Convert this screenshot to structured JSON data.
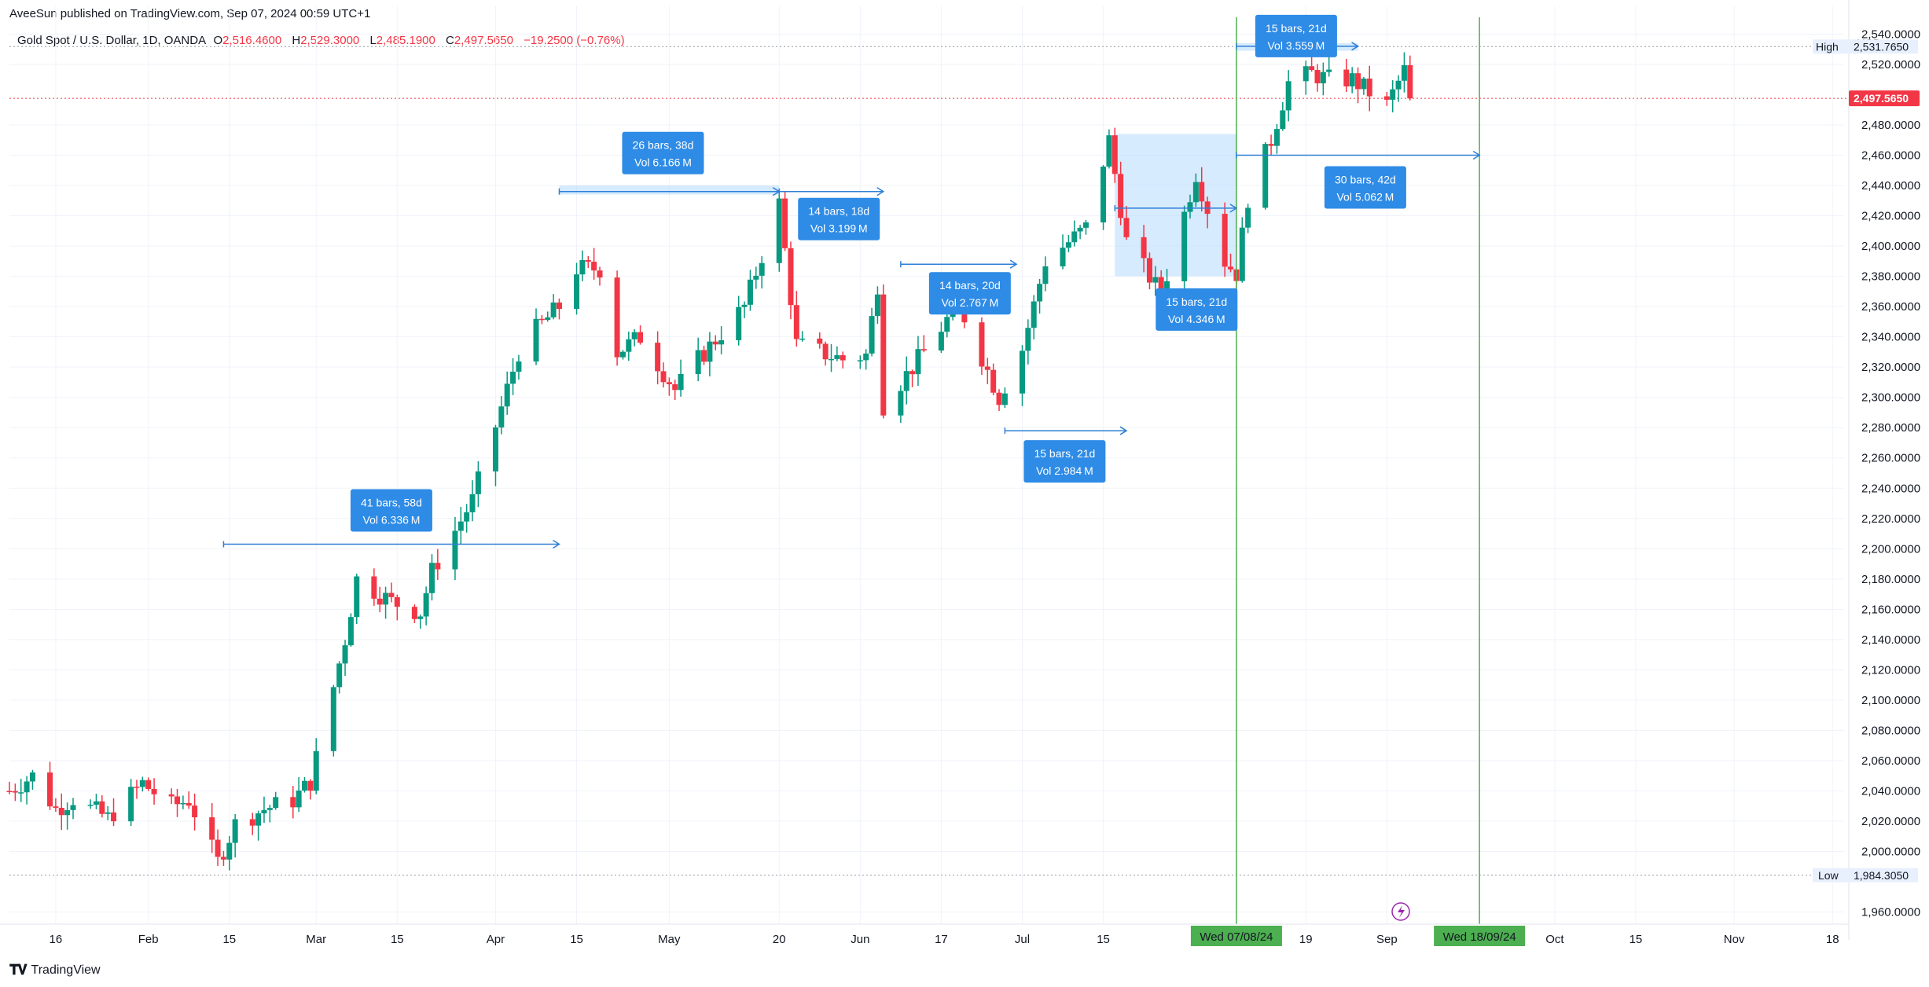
{
  "publisher": "AveeSun published on TradingView.com, Sep 07, 2024 00:59 UTC+1",
  "legend": {
    "symbol": "Gold Spot / U.S. Dollar, 1D, OANDA",
    "open_label": "O",
    "open": "2,516.4600",
    "high_label": "H",
    "high": "2,529.3000",
    "low_label": "L",
    "low": "2,485.1900",
    "close_label": "C",
    "close": "2,497.5650",
    "change": "−19.2500 (−0.76%)"
  },
  "footer": {
    "brand": "TradingView"
  },
  "chart_data": {
    "type": "candlestick",
    "currency": "USD",
    "y_ticks": [
      "1,960.0000",
      "2,000.0000",
      "2,020.0000",
      "2,040.0000",
      "2,060.0000",
      "2,080.0000",
      "2,100.0000",
      "2,120.0000",
      "2,140.0000",
      "2,160.0000",
      "2,180.0000",
      "2,200.0000",
      "2,220.0000",
      "2,240.0000",
      "2,260.0000",
      "2,280.0000",
      "2,300.0000",
      "2,320.0000",
      "2,340.0000",
      "2,360.0000",
      "2,380.0000",
      "2,400.0000",
      "2,420.0000",
      "2,440.0000",
      "2,460.0000",
      "2,480.0000",
      "2,520.0000",
      "2,540.0000"
    ],
    "ylim": [
      1952,
      2548
    ],
    "price_tags": {
      "high_label": "High",
      "high": "2,531.7650",
      "low_label": "Low",
      "low": "1,984.3050",
      "last": "2,497.5650"
    },
    "x_labels": [
      {
        "label": "16",
        "date": "2024-01-16"
      },
      {
        "label": "Feb",
        "date": "2024-02-01"
      },
      {
        "label": "15",
        "date": "2024-02-15"
      },
      {
        "label": "Mar",
        "date": "2024-03-01"
      },
      {
        "label": "15",
        "date": "2024-03-15"
      },
      {
        "label": "Apr",
        "date": "2024-04-01"
      },
      {
        "label": "15",
        "date": "2024-04-15"
      },
      {
        "label": "May",
        "date": "2024-05-01"
      },
      {
        "label": "20",
        "date": "2024-05-20"
      },
      {
        "label": "Jun",
        "date": "2024-06-03"
      },
      {
        "label": "17",
        "date": "2024-06-17"
      },
      {
        "label": "Jul",
        "date": "2024-07-01"
      },
      {
        "label": "15",
        "date": "2024-07-15"
      },
      {
        "label": "19",
        "date": "2024-08-19"
      },
      {
        "label": "Sep",
        "date": "2024-09-02"
      },
      {
        "label": "Oct",
        "date": "2024-10-01"
      },
      {
        "label": "15",
        "date": "2024-10-15"
      },
      {
        "label": "Nov",
        "date": "2024-11-01"
      },
      {
        "label": "18",
        "date": "2024-11-18"
      }
    ],
    "x_range": [
      "2024-01-08",
      "2024-11-20"
    ],
    "date_markers": [
      {
        "label": "Wed 07/08/24",
        "date": "2024-08-07"
      },
      {
        "label": "Wed 18/09/24",
        "date": "2024-09-18"
      }
    ],
    "waypoints": [
      [
        "2024-01-08",
        2040
      ],
      [
        "2024-01-12",
        2050
      ],
      [
        "2024-01-16",
        2028
      ],
      [
        "2024-01-19",
        2035
      ],
      [
        "2024-01-25",
        2022
      ],
      [
        "2024-01-31",
        2045
      ],
      [
        "2024-02-05",
        2030
      ],
      [
        "2024-02-08",
        2034
      ],
      [
        "2024-02-13",
        1993
      ],
      [
        "2024-02-16",
        2018
      ],
      [
        "2024-02-21",
        2028
      ],
      [
        "2024-02-26",
        2034
      ],
      [
        "2024-02-29",
        2046
      ],
      [
        "2024-03-06",
        2140
      ],
      [
        "2024-03-08",
        2180
      ],
      [
        "2024-03-14",
        2165
      ],
      [
        "2024-03-19",
        2158
      ],
      [
        "2024-03-21",
        2185
      ],
      [
        "2024-03-28",
        2232
      ],
      [
        "2024-04-05",
        2330
      ],
      [
        "2024-04-08",
        2345
      ],
      [
        "2024-04-12",
        2360
      ],
      [
        "2024-04-15",
        2385
      ],
      [
        "2024-04-19",
        2385
      ],
      [
        "2024-04-22",
        2330
      ],
      [
        "2024-04-26",
        2340
      ],
      [
        "2024-05-02",
        2305
      ],
      [
        "2024-05-06",
        2325
      ],
      [
        "2024-05-14",
        2360
      ],
      [
        "2024-05-20",
        2428
      ],
      [
        "2024-05-23",
        2335
      ],
      [
        "2024-05-31",
        2325
      ],
      [
        "2024-06-04",
        2328
      ],
      [
        "2024-06-06",
        2375
      ],
      [
        "2024-06-07",
        2295
      ],
      [
        "2024-06-14",
        2330
      ],
      [
        "2024-06-20",
        2362
      ],
      [
        "2024-06-27",
        2300
      ],
      [
        "2024-07-01",
        2332
      ],
      [
        "2024-07-05",
        2390
      ],
      [
        "2024-07-12",
        2412
      ],
      [
        "2024-07-16",
        2470
      ],
      [
        "2024-07-19",
        2403
      ],
      [
        "2024-07-25",
        2368
      ],
      [
        "2024-07-31",
        2448
      ],
      [
        "2024-08-05",
        2390
      ],
      [
        "2024-08-07",
        2382
      ],
      [
        "2024-08-09",
        2432
      ],
      [
        "2024-08-13",
        2470
      ],
      [
        "2024-08-16",
        2508
      ],
      [
        "2024-08-20",
        2514
      ],
      [
        "2024-08-23",
        2510
      ],
      [
        "2024-08-27",
        2510
      ],
      [
        "2024-09-02",
        2493
      ],
      [
        "2024-09-05",
        2516
      ],
      [
        "2024-09-06",
        2497.565
      ]
    ],
    "annotations": [
      {
        "line1": "41 bars, 58d",
        "line2": "Vol 6.336 M",
        "start": "2024-02-14",
        "end": "2024-04-12",
        "price": 2203
      },
      {
        "line1": "26 bars, 38d",
        "line2": "Vol 6.166 M",
        "start": "2024-04-12",
        "end": "2024-05-20",
        "price": 2436
      },
      {
        "line1": "14 bars, 18d",
        "line2": "Vol 3.199 M",
        "start": "2024-05-20",
        "end": "2024-06-07",
        "price": 2436
      },
      {
        "line1": "14 bars, 20d",
        "line2": "Vol 2.767 M",
        "start": "2024-06-10",
        "end": "2024-06-30",
        "price": 2388
      },
      {
        "line1": "15 bars, 21d",
        "line2": "Vol 2.984 M",
        "start": "2024-06-28",
        "end": "2024-07-19",
        "price": 2278
      },
      {
        "line1": "15 bars, 21d",
        "line2": "Vol 4.346 M",
        "start": "2024-07-17",
        "end": "2024-08-07",
        "price": 2425
      },
      {
        "line1": "15 bars, 21d",
        "line2": "Vol 3.559 M",
        "start": "2024-08-07",
        "end": "2024-08-28",
        "price": 2532
      },
      {
        "line1": "30 bars, 42d",
        "line2": "Vol 5.062 M",
        "start": "2024-08-07",
        "end": "2024-09-18",
        "price": 2460
      }
    ],
    "grid": true,
    "colors": {
      "up": "#089981",
      "down": "#f23645",
      "annotation": "#2e7fd6",
      "range_fill": "#bbdefb",
      "vline": "#4caf50",
      "axis_label_bg": "#4caf50",
      "last_tag": "#f23645"
    }
  }
}
